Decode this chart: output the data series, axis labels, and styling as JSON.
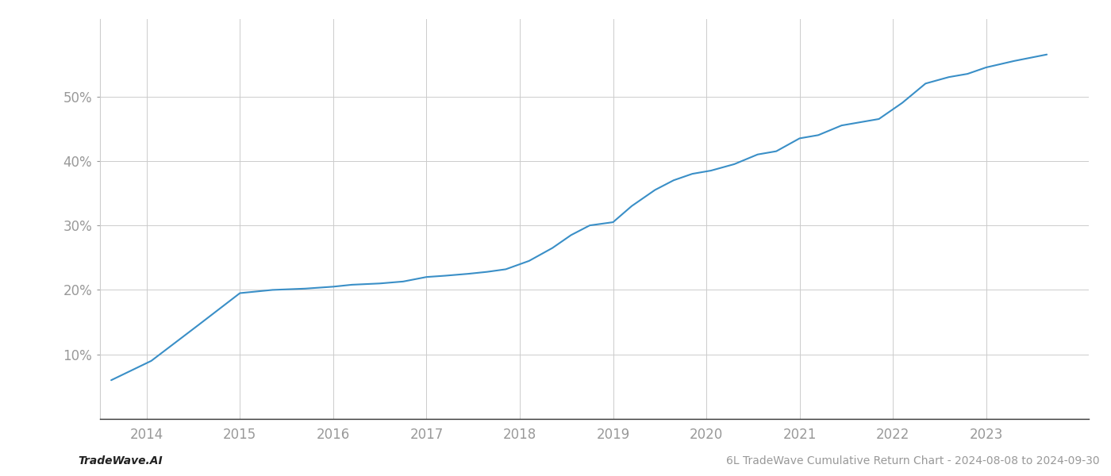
{
  "title": "6L TradeWave Cumulative Return Chart - 2024-08-08 to 2024-09-30",
  "watermark": "TradeWave.AI",
  "line_color": "#3a8fc7",
  "background_color": "#ffffff",
  "grid_color": "#cccccc",
  "x_years": [
    2014,
    2015,
    2016,
    2017,
    2018,
    2019,
    2020,
    2021,
    2022,
    2023
  ],
  "x_values": [
    2013.62,
    2014.05,
    2014.55,
    2015.0,
    2015.35,
    2015.7,
    2016.0,
    2016.2,
    2016.5,
    2016.75,
    2017.0,
    2017.2,
    2017.45,
    2017.65,
    2017.85,
    2018.1,
    2018.35,
    2018.55,
    2018.75,
    2019.0,
    2019.2,
    2019.45,
    2019.65,
    2019.85,
    2020.05,
    2020.3,
    2020.55,
    2020.75,
    2021.0,
    2021.2,
    2021.45,
    2021.65,
    2021.85,
    2022.1,
    2022.35,
    2022.6,
    2022.8,
    2023.0,
    2023.3,
    2023.65
  ],
  "y_values": [
    6.0,
    9.0,
    14.5,
    19.5,
    20.0,
    20.2,
    20.5,
    20.8,
    21.0,
    21.3,
    22.0,
    22.2,
    22.5,
    22.8,
    23.2,
    24.5,
    26.5,
    28.5,
    30.0,
    30.5,
    33.0,
    35.5,
    37.0,
    38.0,
    38.5,
    39.5,
    41.0,
    41.5,
    43.5,
    44.0,
    45.5,
    46.0,
    46.5,
    49.0,
    52.0,
    53.0,
    53.5,
    54.5,
    55.5,
    56.5
  ],
  "ylim": [
    0,
    62
  ],
  "yticks": [
    10,
    20,
    30,
    40,
    50
  ],
  "xlim": [
    2013.5,
    2024.1
  ],
  "line_width": 1.5,
  "title_fontsize": 10,
  "watermark_fontsize": 10,
  "tick_fontsize": 12,
  "tick_color": "#999999",
  "label_color": "#999999"
}
